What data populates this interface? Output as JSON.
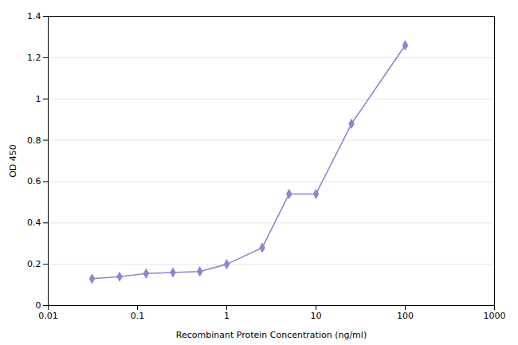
{
  "chart_data": {
    "type": "line",
    "xlabel": "Recombinant Protein Concentration (ng/ml)",
    "ylabel": "OD 450",
    "x": [
      0.031,
      0.063,
      0.125,
      0.25,
      0.5,
      1.0,
      2.5,
      5.0,
      10.0,
      25.0,
      100.0
    ],
    "values": [
      0.13,
      0.14,
      0.155,
      0.16,
      0.165,
      0.2,
      0.28,
      0.54,
      0.54,
      0.88,
      1.26
    ],
    "color": "#8888cc",
    "marker": "diamond",
    "log": "x",
    "xlim": [
      0.01,
      1000
    ],
    "xticks": [
      0.01,
      0.1,
      1,
      10,
      100,
      1000
    ],
    "ylim": [
      0,
      1.4
    ],
    "yticks": [
      0,
      0.2,
      0.4,
      0.6,
      0.8,
      1.0,
      1.2,
      1.4
    ],
    "grid": "y"
  }
}
